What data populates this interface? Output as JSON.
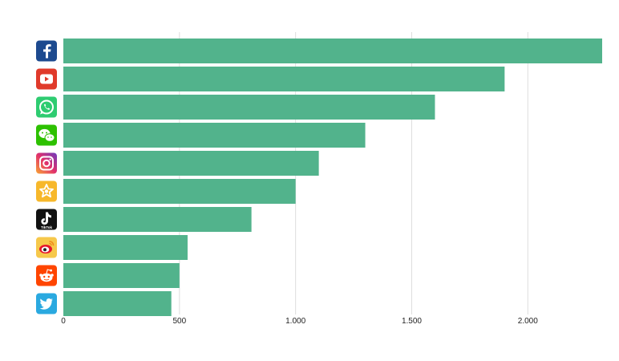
{
  "chart_data": {
    "type": "bar",
    "orientation": "horizontal",
    "categories": [
      "facebook",
      "youtube",
      "whatsapp",
      "wechat",
      "instagram",
      "kuaishou",
      "tiktok",
      "weibo",
      "reddit",
      "twitter"
    ],
    "values": [
      2320,
      1900,
      1600,
      1300,
      1100,
      1000,
      810,
      535,
      500,
      465
    ],
    "xlim": [
      0,
      2320
    ],
    "xticks": [
      0,
      500,
      1000,
      1500,
      2000
    ],
    "xtick_labels": [
      "0",
      "500",
      "1.000",
      "1.500",
      "2.000"
    ],
    "grid": "vertical",
    "title": "",
    "xlabel": "",
    "ylabel": "",
    "bar_color": "#52b38c"
  },
  "icons": [
    {
      "name": "facebook-icon",
      "bg": "#1d4a8f",
      "glyph": "f"
    },
    {
      "name": "youtube-icon",
      "bg": "#e03a2b",
      "glyph": "play"
    },
    {
      "name": "whatsapp-icon",
      "bg": "#2ecc71",
      "glyph": "phone"
    },
    {
      "name": "wechat-icon",
      "bg": "#2dc100",
      "glyph": "bubbles"
    },
    {
      "name": "instagram-icon",
      "bg": "#b0379c",
      "glyph": "camera"
    },
    {
      "name": "kuaishou-icon",
      "bg": "#f7b82b",
      "glyph": "star"
    },
    {
      "name": "tiktok-icon",
      "bg": "#111111",
      "glyph": "note",
      "text": "TikTok"
    },
    {
      "name": "weibo-icon",
      "bg": "#f6c84b",
      "glyph": "eye"
    },
    {
      "name": "reddit-icon",
      "bg": "#ff4500",
      "glyph": "alien"
    },
    {
      "name": "twitter-icon",
      "bg": "#2aa9e0",
      "glyph": "bird"
    }
  ]
}
